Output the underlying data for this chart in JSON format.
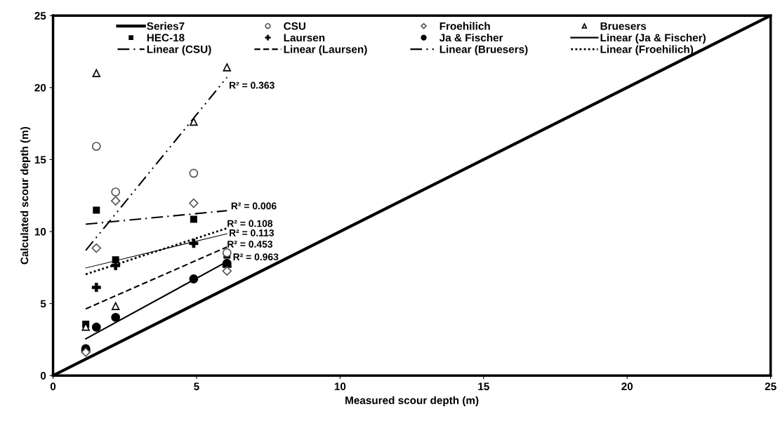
{
  "chart_data": {
    "type": "scatter",
    "xlabel": "Measured scour depth (m)",
    "ylabel": "Calculated scour depth (m)",
    "xlim": [
      0,
      25
    ],
    "ylim": [
      0,
      25
    ],
    "xticks": [
      0,
      5,
      10,
      15,
      20,
      25
    ],
    "yticks": [
      0,
      5,
      10,
      15,
      20,
      25
    ],
    "grid": false,
    "legend": "top",
    "series": [
      {
        "name": "Series7",
        "type": "line",
        "color": "#000000",
        "x": [
          0,
          25
        ],
        "values": [
          0,
          25
        ],
        "line_style": "solid"
      },
      {
        "name": "CSU",
        "marker": "circle",
        "color": "#555555",
        "x": [
          1.51,
          2.18,
          4.9,
          6.06
        ],
        "values": [
          15.92,
          12.75,
          14.05,
          8.53
        ]
      },
      {
        "name": "Froehilich",
        "marker": "diamond",
        "color": "#555555",
        "x": [
          1.14,
          1.51,
          2.18,
          4.9,
          6.06
        ],
        "values": [
          1.62,
          8.85,
          12.13,
          11.97,
          7.26
        ]
      },
      {
        "name": "Bruesers",
        "marker": "triangle",
        "color": "#000000",
        "x": [
          1.14,
          1.51,
          2.18,
          4.9,
          6.06
        ],
        "values": [
          3.38,
          21.0,
          4.82,
          17.63,
          21.4
        ]
      },
      {
        "name": "HEC-18",
        "marker": "square",
        "color": "#000000",
        "x": [
          1.14,
          1.51,
          2.18,
          4.9,
          6.06
        ],
        "values": [
          3.57,
          11.49,
          8.04,
          10.85,
          8.37
        ]
      },
      {
        "name": "Laursen",
        "marker": "cross",
        "color": "#000000",
        "x": [
          1.14,
          1.51,
          2.18,
          4.9,
          6.06
        ],
        "values": [
          1.74,
          6.12,
          7.64,
          9.18,
          7.59
        ]
      },
      {
        "name": "Ja & Fischer",
        "marker": "circle",
        "color": "#000000",
        "x": [
          1.14,
          1.51,
          2.18,
          4.9,
          6.06
        ],
        "values": [
          1.87,
          3.36,
          4.04,
          6.71,
          7.8
        ]
      },
      {
        "name": "Linear (Ja & Fischer)",
        "type": "line",
        "color": "#000000",
        "x": [
          1.14,
          6.06
        ],
        "values": [
          2.55,
          7.91
        ],
        "line_style": "solid"
      },
      {
        "name": "Linear (CSU)",
        "type": "line",
        "color": "#000000",
        "x": [
          1.14,
          6.06
        ],
        "values": [
          10.51,
          11.45
        ],
        "line_style": "dashdot"
      },
      {
        "name": "Linear (Laursen)",
        "type": "line",
        "color": "#000000",
        "x": [
          1.14,
          6.06
        ],
        "values": [
          4.63,
          8.93
        ],
        "line_style": "dashed"
      },
      {
        "name": "Linear (Bruesers)",
        "type": "line",
        "color": "#000000",
        "x": [
          1.14,
          6.06
        ],
        "values": [
          8.69,
          20.71
        ],
        "line_style": "dashdotdot"
      },
      {
        "name": "Linear (Froehilich)",
        "type": "line",
        "color": "#000000",
        "x": [
          1.14,
          6.06
        ],
        "values": [
          7.03,
          10.23
        ],
        "line_style": "dotted"
      },
      {
        "type": "line",
        "color": "#000000",
        "x": [
          1.14,
          6.06
        ],
        "values": [
          7.47,
          9.85
        ],
        "line_style": "solid"
      }
    ],
    "annotations": [
      "R² = 0.363",
      "R² = 0.006",
      "R² = 0.108",
      "R² = 0.113",
      "R² = 0.453",
      "R² = 0.963"
    ]
  }
}
